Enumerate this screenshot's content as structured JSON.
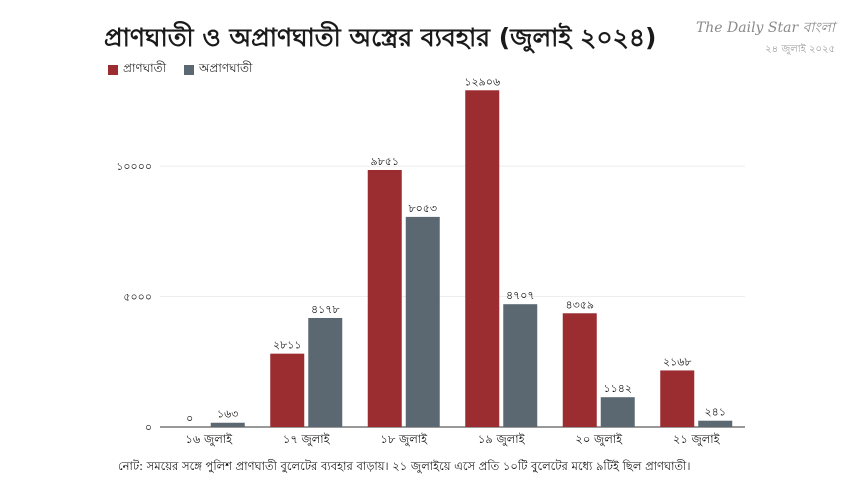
{
  "header": {
    "title": "প্রাণঘাতী ও অপ্রাণঘাতী অস্ত্রের ব্যবহার (জুলাই ২০২৪)",
    "brand_name": "The Daily Star বাংলা",
    "brand_date": "২৪ জুলাই ২০২৫"
  },
  "legend": {
    "lethal": "প্রাণঘাতী",
    "nonlethal": "অপ্রাণঘাতী"
  },
  "colors": {
    "lethal": "#9b2c30",
    "nonlethal": "#5b6872",
    "grid": "#eeeeee",
    "axis": "#333333"
  },
  "chart_data": {
    "type": "bar",
    "categories": [
      "১৬ জুলাই",
      "১৭ জুলাই",
      "১৮ জুলাই",
      "১৯ জুলাই",
      "২০ জুলাই",
      "২১ জুলাই"
    ],
    "series": [
      {
        "name": "প্রাণঘাতী",
        "values": [
          0,
          2811,
          9851,
          12906,
          4359,
          2168
        ],
        "labels": [
          "০",
          "২৮১১",
          "৯৮৫১",
          "১২৯০৬",
          "৪৩৫৯",
          "২১৬৮"
        ]
      },
      {
        "name": "অপ্রাণঘাতী",
        "values": [
          163,
          4178,
          8053,
          4707,
          1142,
          241
        ],
        "labels": [
          "১৬৩",
          "৪১৭৮",
          "৮০৫৩",
          "৪৭০৭",
          "১১৪২",
          "২৪১"
        ]
      }
    ],
    "yticks": [
      0,
      5000,
      10000
    ],
    "ytick_labels": [
      "০",
      "৫০০০",
      "১০০০০"
    ],
    "ylim": [
      0,
      13300
    ],
    "grid": true,
    "legend_position": "top-left"
  },
  "footer": {
    "note": "নোট: সময়ের সঙ্গে পুলিশ প্রাণঘাতী বুলেটের ব্যবহার বাড়ায়। ২১ জুলাইয়ে এসে প্রতি ১০টি বুলেটের মধ্যে ৯টিই ছিল প্রাণঘাতী।"
  }
}
